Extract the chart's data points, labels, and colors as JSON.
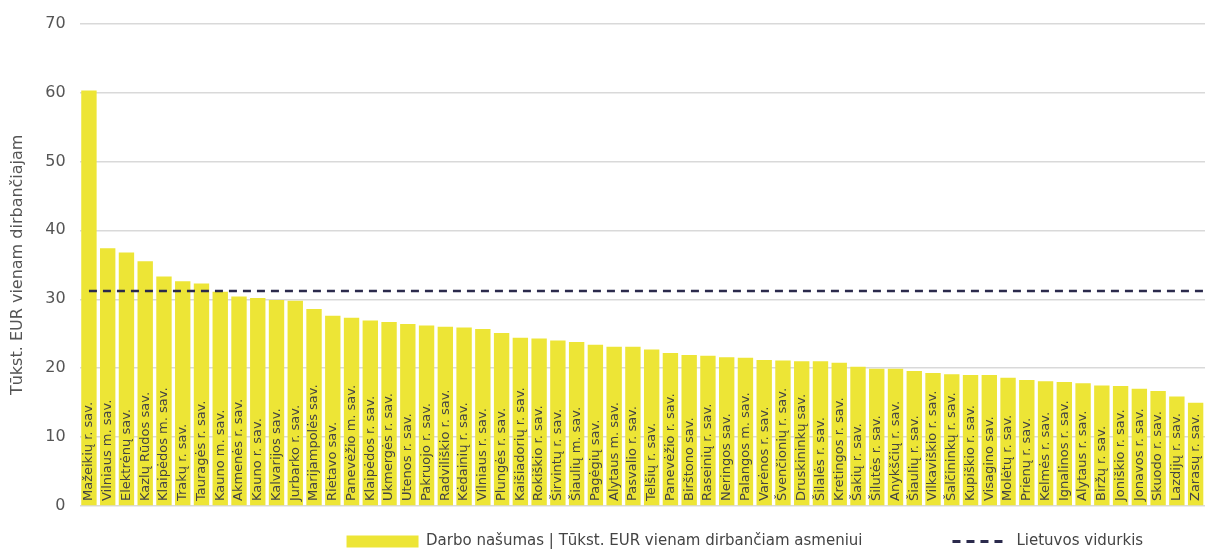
{
  "chart_data": {
    "type": "bar",
    "ylabel": "Tūkst. EUR vienam dirbančiajam",
    "categories": [
      "Mažeikių r. sav.",
      "Vilniaus m. sav.",
      "Elektrėnų sav.",
      "Kazlų Rūdos sav.",
      "Klaipėdos m. sav.",
      "Trakų r. sav.",
      "Tauragės r. sav.",
      "Kauno m. sav.",
      "Akmenės r. sav.",
      "Kauno r. sav.",
      "Kalvarijos sav.",
      "Jurbarko r. sav.",
      "Marijampolės sav.",
      "Rietavo sav.",
      "Panevėžio m. sav.",
      "Klaipėdos r. sav.",
      "Ukmergės r. sav.",
      "Utenos r. sav.",
      "Pakruojo r. sav.",
      "Radviliškio r. sav.",
      "Kėdainių r. sav.",
      "Vilniaus r. sav.",
      "Plungės r. sav.",
      "Kaišiadorių r. sav.",
      "Rokiškio r. sav.",
      "Širvintų r. sav.",
      "Šiaulių m. sav.",
      "Pagėgių sav.",
      "Alytaus m. sav.",
      "Pasvalio r. sav.",
      "Telšių r. sav.",
      "Panevėžio r. sav.",
      "Birštono sav.",
      "Raseinių r. sav.",
      "Neringos sav.",
      "Palangos m. sav.",
      "Varėnos r. sav.",
      "Švenčionių r. sav.",
      "Druskininkų sav.",
      "Šilalės r. sav.",
      "Kretingos r. sav.",
      "Šakių r. sav.",
      "Šilutės r. sav.",
      "Anykščių r. sav.",
      "Šiaulių r. sav.",
      "Vilkaviškio r. sav.",
      "Šalčininkų r. sav.",
      "Kupiškio r. sav.",
      "Visagino sav.",
      "Molėtų r. sav.",
      "Prienų r. sav.",
      "Kelmės r. sav.",
      "Ignalinos r. sav.",
      "Alytaus r. sav.",
      "Biržų r. sav.",
      "Joniškio r. sav.",
      "Jonavos r. sav.",
      "Skuodo r. sav.",
      "Lazdijų r. sav.",
      "Zarasų r. sav."
    ],
    "series": [
      {
        "name": "Darbo našumas | Tūkst. EUR vienam dirbančiam asmeniui",
        "color": "#ede536",
        "values": [
          60.3,
          37.4,
          36.8,
          35.5,
          33.3,
          32.6,
          32.3,
          31.1,
          30.4,
          30.2,
          29.9,
          29.8,
          28.6,
          27.6,
          27.3,
          26.9,
          26.7,
          26.4,
          26.2,
          26.0,
          25.9,
          25.7,
          25.1,
          24.4,
          24.3,
          24.0,
          23.8,
          23.4,
          23.1,
          23.1,
          22.7,
          22.2,
          21.9,
          21.8,
          21.6,
          21.5,
          21.2,
          21.1,
          21.0,
          21.0,
          20.8,
          20.2,
          19.9,
          19.9,
          19.6,
          19.3,
          19.1,
          19.0,
          19.0,
          18.6,
          18.3,
          18.1,
          18.0,
          17.8,
          17.5,
          17.4,
          17.0,
          16.7,
          15.9,
          15.0
        ]
      }
    ],
    "ref_lines": [
      {
        "axis": "y",
        "value": 31.2,
        "label": "Lietuvos vidurkis",
        "color": "#2b2a4c",
        "line_style": "dashed"
      }
    ],
    "ylim": [
      0,
      70
    ],
    "yticks": [
      0,
      10,
      20,
      30,
      40,
      50,
      60,
      70
    ],
    "grid": "y",
    "legend": "bottom"
  }
}
